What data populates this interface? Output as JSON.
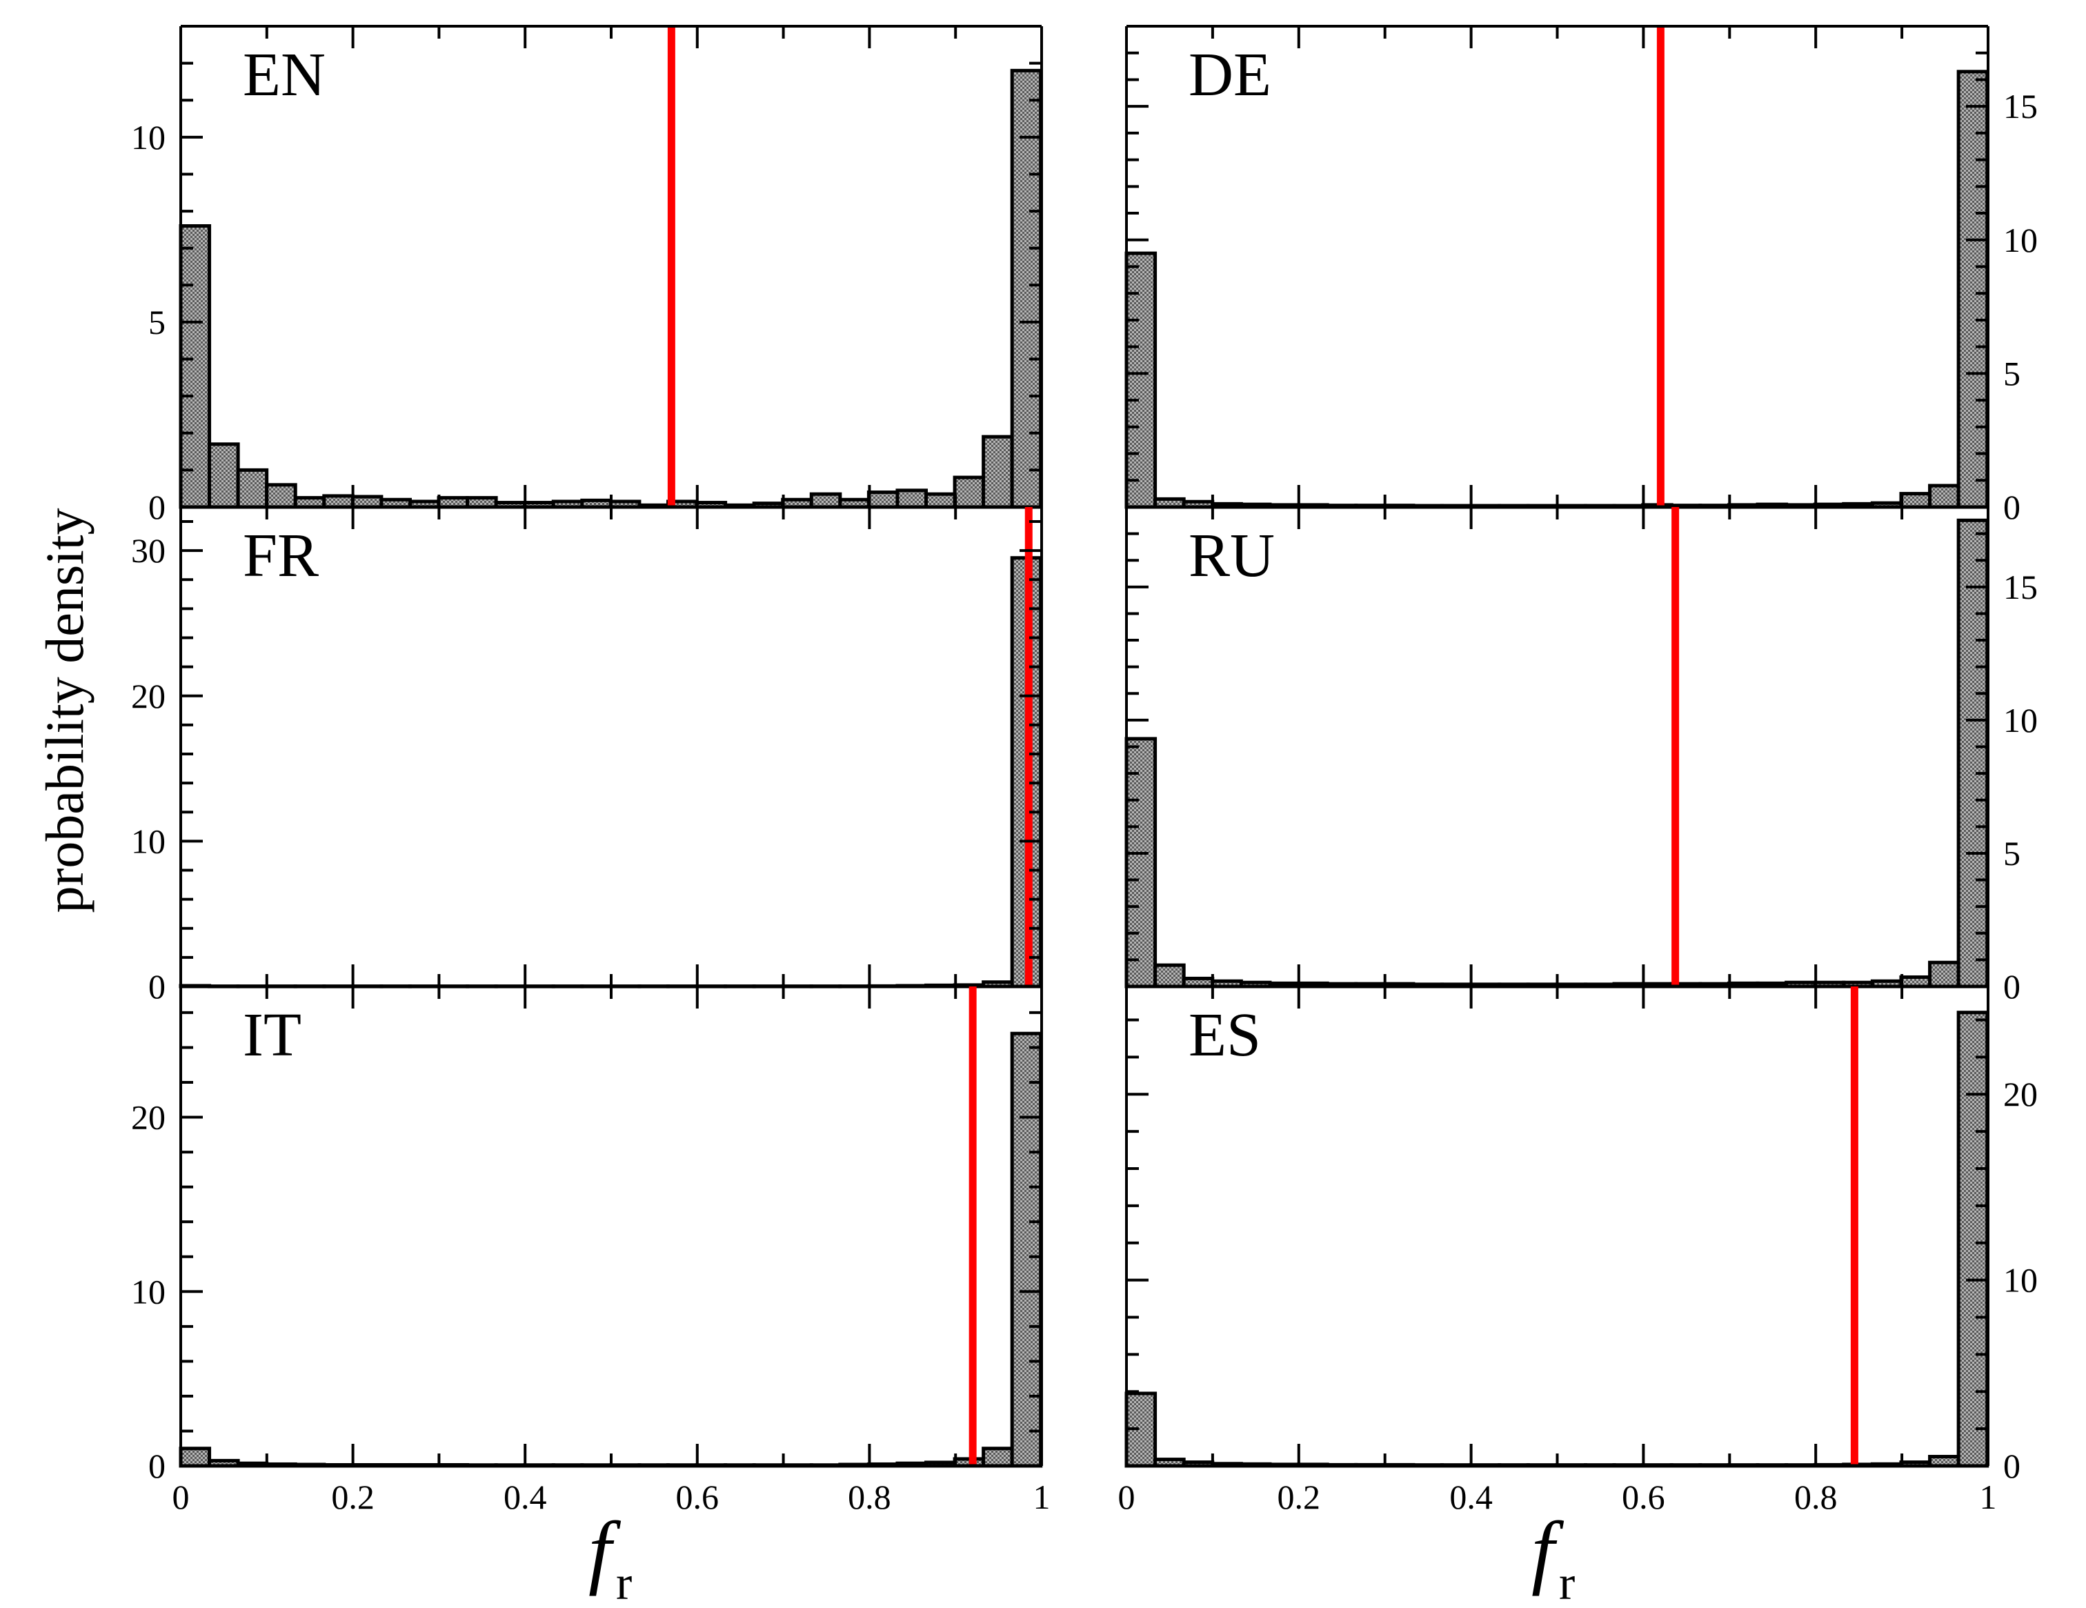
{
  "figure": {
    "ylabel": "probability density",
    "xlabel_main": "f",
    "xlabel_sub": "r"
  },
  "colors": {
    "bar_fill": "#9a9a9a",
    "bar_edge": "#000000",
    "mean_line": "#ff0000",
    "axis": "#000000"
  },
  "chart_data": [
    {
      "type": "bar",
      "panel": "EN",
      "column": "left",
      "row": 0,
      "bin_width": 0.0333,
      "x_bins_start": 0,
      "xlim": [
        0,
        1
      ],
      "ylim": [
        0,
        13
      ],
      "yticks": [
        0,
        5,
        10
      ],
      "ytick_side": "left",
      "show_xticklabels": false,
      "mean": 0.57,
      "values": [
        7.6,
        1.7,
        1.0,
        0.6,
        0.25,
        0.3,
        0.28,
        0.2,
        0.15,
        0.25,
        0.25,
        0.12,
        0.12,
        0.15,
        0.18,
        0.15,
        0.05,
        0.15,
        0.12,
        0.05,
        0.1,
        0.2,
        0.35,
        0.2,
        0.4,
        0.45,
        0.35,
        0.8,
        1.9,
        11.8
      ]
    },
    {
      "type": "bar",
      "panel": "DE",
      "column": "right",
      "row": 0,
      "bin_width": 0.0333,
      "x_bins_start": 0,
      "xlim": [
        0,
        1
      ],
      "ylim": [
        0,
        18
      ],
      "yticks": [
        0,
        5,
        10,
        15
      ],
      "ytick_side": "right",
      "show_xticklabels": false,
      "mean": 0.62,
      "values": [
        9.5,
        0.3,
        0.2,
        0.12,
        0.1,
        0.08,
        0.08,
        0.06,
        0.06,
        0.06,
        0.05,
        0.05,
        0.05,
        0.05,
        0.05,
        0.05,
        0.05,
        0.05,
        0.08,
        0.06,
        0.06,
        0.08,
        0.1,
        0.08,
        0.1,
        0.12,
        0.15,
        0.5,
        0.8,
        16.3
      ]
    },
    {
      "type": "bar",
      "panel": "FR",
      "column": "left",
      "row": 1,
      "bin_width": 0.0333,
      "x_bins_start": 0,
      "xlim": [
        0,
        1
      ],
      "ylim": [
        0,
        33
      ],
      "yticks": [
        0,
        10,
        20,
        30
      ],
      "ytick_side": "left",
      "show_xticklabels": false,
      "mean": 0.985,
      "values": [
        0.05,
        0.02,
        0.02,
        0.02,
        0.02,
        0.02,
        0.02,
        0.02,
        0.02,
        0.02,
        0.02,
        0.02,
        0.02,
        0.02,
        0.02,
        0.02,
        0.02,
        0.02,
        0.02,
        0.02,
        0.02,
        0.02,
        0.02,
        0.02,
        0.03,
        0.05,
        0.08,
        0.1,
        0.3,
        29.5
      ]
    },
    {
      "type": "bar",
      "panel": "RU",
      "column": "right",
      "row": 1,
      "bin_width": 0.0333,
      "x_bins_start": 0,
      "xlim": [
        0,
        1
      ],
      "ylim": [
        0,
        18
      ],
      "yticks": [
        0,
        5,
        10,
        15
      ],
      "ytick_side": "right",
      "show_xticklabels": false,
      "mean": 0.637,
      "values": [
        9.3,
        0.8,
        0.3,
        0.2,
        0.15,
        0.12,
        0.12,
        0.1,
        0.1,
        0.1,
        0.08,
        0.08,
        0.08,
        0.08,
        0.08,
        0.08,
        0.08,
        0.1,
        0.1,
        0.1,
        0.1,
        0.12,
        0.12,
        0.15,
        0.15,
        0.15,
        0.2,
        0.35,
        0.9,
        17.5
      ]
    },
    {
      "type": "bar",
      "panel": "IT",
      "column": "left",
      "row": 2,
      "bin_width": 0.0333,
      "x_bins_start": 0,
      "xlim": [
        0,
        1
      ],
      "ylim": [
        0,
        27.5
      ],
      "yticks": [
        0,
        10,
        20
      ],
      "ytick_side": "left",
      "show_xticklabels": true,
      "xticks": [
        0,
        0.2,
        0.4,
        0.6,
        0.8,
        1
      ],
      "xticklabels": [
        "0",
        "0.2",
        "0.4",
        "0.6",
        "0.8",
        "1"
      ],
      "mean": 0.92,
      "values": [
        1.0,
        0.3,
        0.15,
        0.1,
        0.08,
        0.06,
        0.06,
        0.06,
        0.06,
        0.06,
        0.05,
        0.05,
        0.05,
        0.05,
        0.05,
        0.05,
        0.05,
        0.05,
        0.05,
        0.05,
        0.05,
        0.05,
        0.05,
        0.08,
        0.1,
        0.15,
        0.2,
        0.4,
        1.0,
        24.8
      ]
    },
    {
      "type": "bar",
      "panel": "ES",
      "column": "right",
      "row": 2,
      "bin_width": 0.0333,
      "x_bins_start": 0,
      "xlim": [
        0,
        1
      ],
      "ylim": [
        0,
        25.8
      ],
      "yticks": [
        0,
        10,
        20
      ],
      "ytick_side": "right",
      "show_xticklabels": true,
      "xticks": [
        0,
        0.2,
        0.4,
        0.6,
        0.8,
        1
      ],
      "xticklabels": [
        "0",
        "0.2",
        "0.4",
        "0.6",
        "0.8",
        "1"
      ],
      "mean": 0.845,
      "values": [
        3.9,
        0.35,
        0.2,
        0.12,
        0.1,
        0.08,
        0.08,
        0.06,
        0.06,
        0.06,
        0.05,
        0.05,
        0.05,
        0.05,
        0.05,
        0.05,
        0.05,
        0.05,
        0.05,
        0.05,
        0.05,
        0.05,
        0.05,
        0.05,
        0.06,
        0.08,
        0.1,
        0.2,
        0.5,
        24.4
      ]
    }
  ]
}
